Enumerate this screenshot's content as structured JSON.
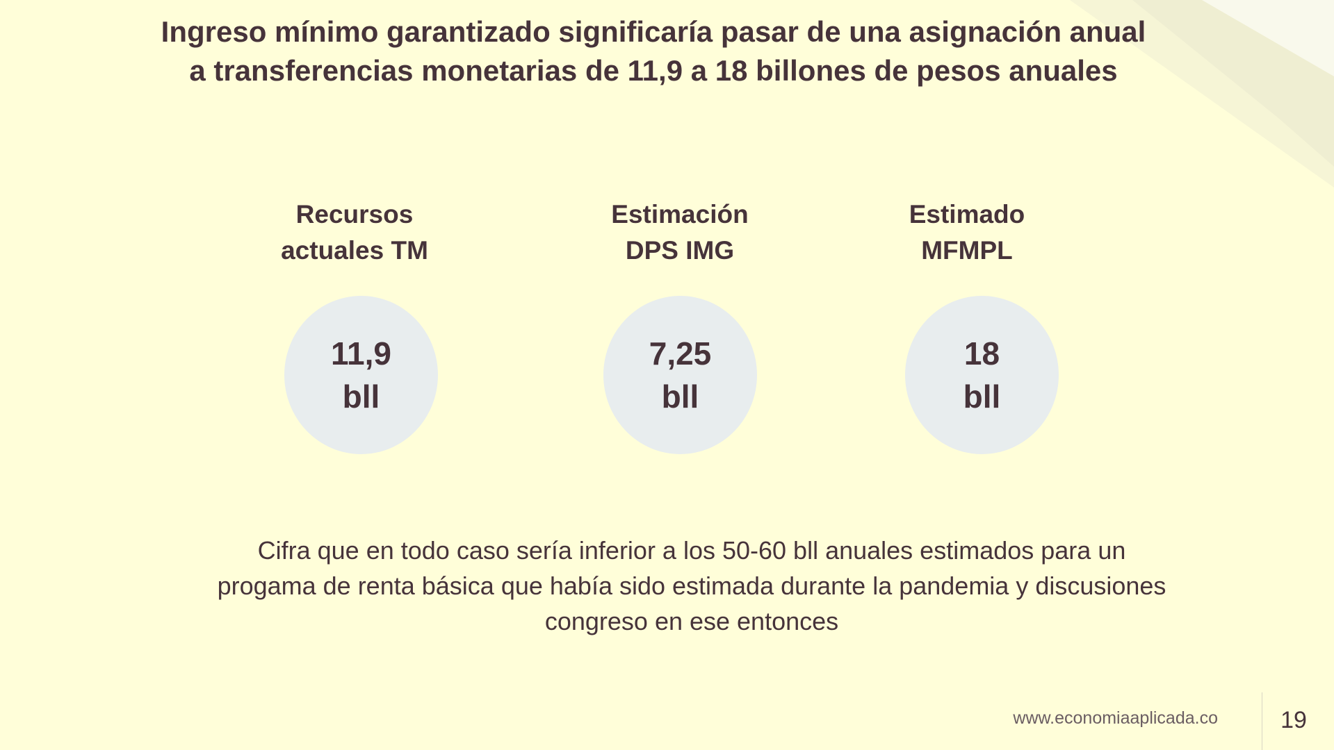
{
  "slide": {
    "title_lines": [
      "Ingreso mínimo garantizado significaría pasar de una asignación anual",
      "a transferencias monetarias  de 11,9 a 18 billones de pesos anuales"
    ],
    "columns": [
      {
        "label_lines": [
          "Recursos",
          "actuales TM"
        ],
        "value": "11,9",
        "unit": "bll"
      },
      {
        "label_lines": [
          "Estimación",
          "DPS IMG"
        ],
        "value": "7,25",
        "unit": "bll"
      },
      {
        "label_lines": [
          "Estimado",
          "MFMPL"
        ],
        "value": "18",
        "unit": "bll"
      }
    ],
    "note_lines": [
      "Cifra que en todo caso sería inferior a los 50-60 bll anuales estimados para un",
      "progama de renta básica que había sido estimada durante la pandemia y discusiones",
      "congreso en ese entonces"
    ],
    "footer": {
      "url": "www.economiaaplicada.co",
      "page_number": "19"
    },
    "colors": {
      "background": "#fffed9",
      "text": "#46333a",
      "bubble": "#e8edee"
    }
  }
}
